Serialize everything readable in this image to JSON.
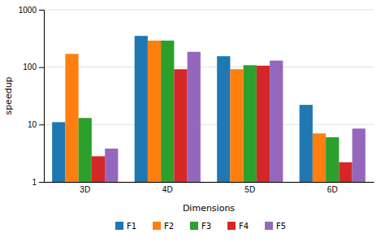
{
  "chart_data": {
    "type": "bar",
    "xlabel": "Dimensions",
    "ylabel": "speedup",
    "categories": [
      "3D",
      "4D",
      "5D",
      "6D"
    ],
    "series": [
      {
        "name": "F1",
        "values": [
          11,
          350,
          155,
          22
        ]
      },
      {
        "name": "F2",
        "values": [
          170,
          290,
          92,
          7
        ]
      },
      {
        "name": "F3",
        "values": [
          13,
          290,
          108,
          6
        ]
      },
      {
        "name": "F4",
        "values": [
          2.8,
          92,
          106,
          2.2
        ]
      },
      {
        "name": "F5",
        "values": [
          3.8,
          185,
          130,
          8.5
        ]
      }
    ],
    "ylim": [
      1,
      1000
    ],
    "yticks": [
      1,
      10,
      100,
      1000
    ],
    "log": "y",
    "grid": true,
    "legend": "bottom"
  }
}
